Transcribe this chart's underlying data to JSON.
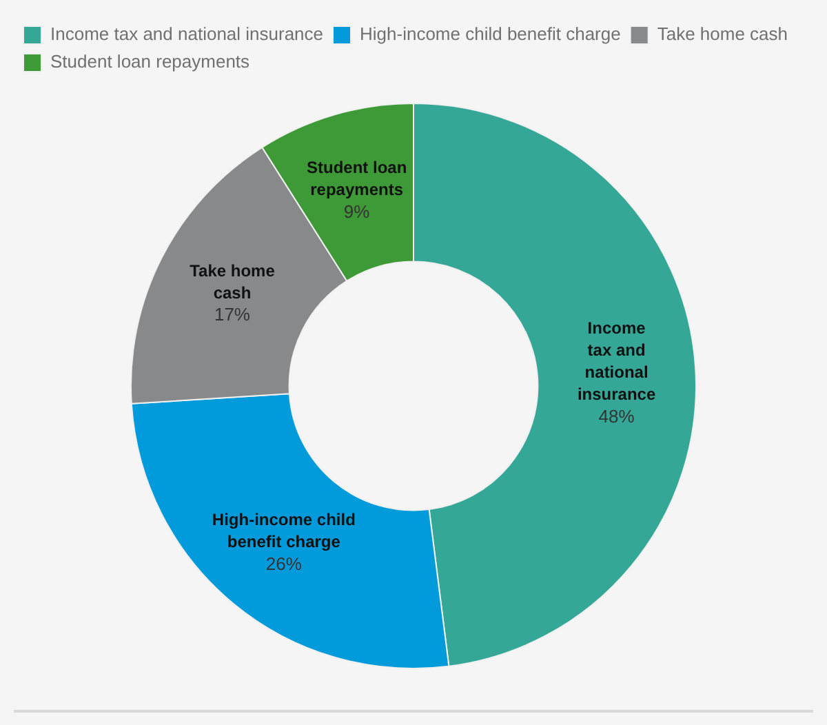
{
  "chart_data": {
    "type": "donut",
    "categories": [
      "Income tax and national insurance",
      "High-income child benefit charge",
      "Take home cash",
      "Student loan repayments"
    ],
    "values": [
      48,
      26,
      17,
      9
    ],
    "colors": [
      "#34a797",
      "#019bdc",
      "#87898b",
      "#3e9a37"
    ],
    "value_labels": [
      "48%",
      "26%",
      "17%",
      "9%"
    ],
    "legend": "top left"
  }
}
